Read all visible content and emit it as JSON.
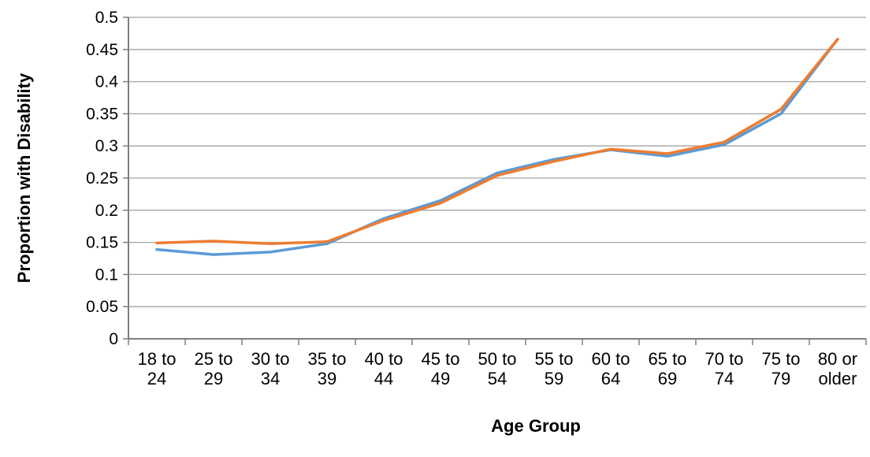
{
  "chart_data": {
    "type": "line",
    "title": "",
    "xlabel": "Age Group",
    "ylabel": "Proportion with Disability",
    "ylim": [
      0,
      0.5
    ],
    "y_tick_step": 0.05,
    "y_tick_labels": [
      "0",
      "0.05",
      "0.1",
      "0.15",
      "0.2",
      "0.25",
      "0.3",
      "0.35",
      "0.4",
      "0.45",
      "0.5"
    ],
    "categories": [
      [
        "18 to",
        "24"
      ],
      [
        "25 to",
        "29"
      ],
      [
        "30 to",
        "34"
      ],
      [
        "35 to",
        "39"
      ],
      [
        "40 to",
        "44"
      ],
      [
        "45 to",
        "49"
      ],
      [
        "50 to",
        "54"
      ],
      [
        "55 to",
        "59"
      ],
      [
        "60 to",
        "64"
      ],
      [
        "65 to",
        "69"
      ],
      [
        "70 to",
        "74"
      ],
      [
        "75 to",
        "79"
      ],
      [
        "80 or",
        "older"
      ]
    ],
    "grid": true,
    "legend_position": "none",
    "series": [
      {
        "name": "blue-line",
        "color": "#5B9BD5",
        "values": [
          0.139,
          0.131,
          0.135,
          0.148,
          0.187,
          0.215,
          0.258,
          0.279,
          0.294,
          0.284,
          0.302,
          0.35,
          0.466
        ]
      },
      {
        "name": "orange-line",
        "color": "#ED7D31",
        "values": [
          0.149,
          0.152,
          0.148,
          0.151,
          0.184,
          0.211,
          0.254,
          0.276,
          0.295,
          0.288,
          0.306,
          0.357,
          0.466
        ]
      }
    ],
    "colors": {
      "gridline": "#A3A3A3",
      "axis": "#7F7F7F",
      "text": "#000000"
    }
  }
}
